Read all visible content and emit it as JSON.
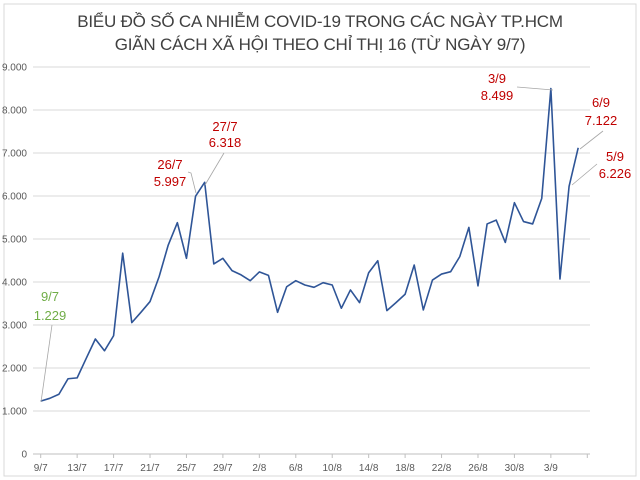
{
  "chart_data": {
    "type": "line",
    "title": "BIỂU ĐỒ SỐ CA NHIỄM COVID-19 TRONG CÁC NGÀY TP.HCM",
    "subtitle": "GIÃN CÁCH XÃ HỘI THEO CHỈ THỊ 16 (TỪ NGÀY 9/7)",
    "xlabel": "",
    "ylabel": "",
    "ylim": [
      0,
      9000
    ],
    "y_ticks": [
      "0",
      "1.000",
      "2.000",
      "3.000",
      "4.000",
      "5.000",
      "6.000",
      "7.000",
      "8.000",
      "9.000"
    ],
    "x_tick_labels": [
      "9/7",
      "13/7",
      "17/7",
      "21/7",
      "25/7",
      "29/7",
      "2/8",
      "6/8",
      "10/8",
      "14/8",
      "18/8",
      "22/8",
      "26/8",
      "30/8",
      "3/9"
    ],
    "x_range": [
      "9/7",
      "6/9"
    ],
    "grid": "horizontal",
    "legend": "none",
    "line_color": "#2F5597",
    "series": [
      {
        "values": [
          1229,
          1295,
          1390,
          1750,
          1770,
          2225,
          2675,
          2400,
          2750,
          4670,
          3055,
          3295,
          3545,
          4125,
          4860,
          5380,
          4550,
          5997,
          6318,
          4420,
          4550,
          4265,
          4165,
          4030,
          4235,
          4155,
          3295,
          3890,
          4030,
          3930,
          3876,
          3984,
          3930,
          3390,
          3815,
          3520,
          4215,
          4495,
          3335,
          3520,
          3715,
          4395,
          3350,
          4045,
          4185,
          4240,
          4590,
          5270,
          3910,
          5350,
          5440,
          4920,
          5845,
          5405,
          5350,
          5945,
          8499,
          4070,
          6226,
          7122
        ]
      }
    ],
    "annotations": [
      {
        "date": "9/7",
        "value": "1.229",
        "color": "#70AD47"
      },
      {
        "date": "26/7",
        "value": "5.997",
        "color": "#C00000"
      },
      {
        "date": "27/7",
        "value": "6.318",
        "color": "#C00000"
      },
      {
        "date": "3/9",
        "value": "8.499",
        "color": "#C00000"
      },
      {
        "date": "6/9",
        "value": "7.122",
        "color": "#C00000"
      },
      {
        "date": "5/9",
        "value": "6.226",
        "color": "#C00000"
      }
    ]
  }
}
